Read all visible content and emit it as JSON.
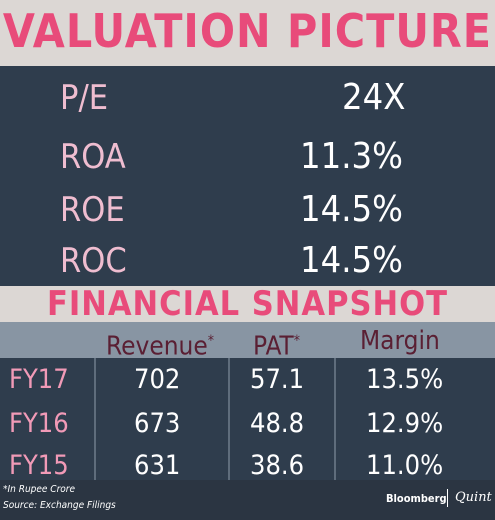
{
  "valuation": {
    "title": "VALUATION PICTURE",
    "rows": [
      {
        "label": "P/E",
        "value": "24X"
      },
      {
        "label": "ROA",
        "value": "11.3%"
      },
      {
        "label": "ROE",
        "value": "14.5%"
      },
      {
        "label": "ROC",
        "value": "14.5%"
      }
    ]
  },
  "snapshot": {
    "title": "FINANCIAL SNAPSHOT",
    "columns": {
      "revenue": "Revenue",
      "pat": "PAT",
      "margin": "Margin",
      "marker": "*"
    },
    "rows": [
      {
        "year": "FY17",
        "revenue": "702",
        "pat": "57.1",
        "margin": "13.5%"
      },
      {
        "year": "FY16",
        "revenue": "673",
        "pat": "48.8",
        "margin": "12.9%"
      },
      {
        "year": "FY15",
        "revenue": "631",
        "pat": "38.6",
        "margin": "11.0%"
      }
    ]
  },
  "footer": {
    "note": "*In Rupee Crore",
    "source": "Source: Exchange Filings",
    "brand_left": "Bloomberg",
    "brand_right": "Quint"
  },
  "colors": {
    "accent_pink": "#e84b7a",
    "label_pink": "#efbdd0",
    "year_pink": "#f19ab7",
    "background": "#2f3d4d",
    "header_band": "#dcd7d4",
    "column_header_band": "#8895a3",
    "column_header_text": "#5a1f33"
  }
}
